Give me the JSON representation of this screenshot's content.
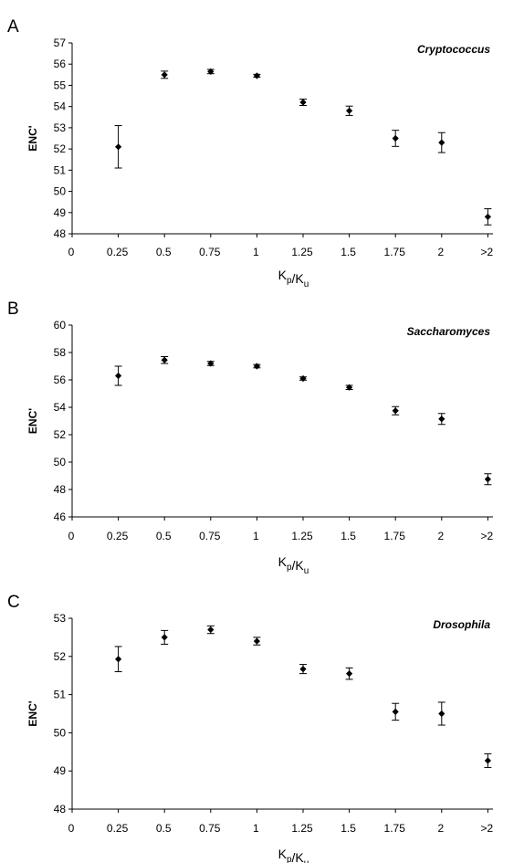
{
  "chart_data": [
    {
      "type": "scatter",
      "panel_label": "A",
      "title": "Cryptococcus",
      "xlabel": "K_p/K_u",
      "ylabel": "ENC'",
      "x_ticks": [
        "0",
        "0.25",
        "0.5",
        "0.75",
        "1",
        "1.25",
        "1.5",
        "1.75",
        "2",
        ">2"
      ],
      "y_ticks": [
        "48",
        "49",
        "50",
        "51",
        "52",
        "53",
        "54",
        "55",
        "56",
        "57"
      ],
      "ylim": [
        48,
        57
      ],
      "grid": false,
      "series": [
        {
          "points": [
            {
              "x": "0.25",
              "y": 52.1,
              "err": 1.0
            },
            {
              "x": "0.5",
              "y": 55.5,
              "err": 0.17
            },
            {
              "x": "0.75",
              "y": 55.65,
              "err": 0.1
            },
            {
              "x": "1",
              "y": 55.45,
              "err": 0.07
            },
            {
              "x": "1.25",
              "y": 54.2,
              "err": 0.15
            },
            {
              "x": "1.5",
              "y": 53.8,
              "err": 0.22
            },
            {
              "x": "1.75",
              "y": 52.5,
              "err": 0.38
            },
            {
              "x": "2",
              "y": 52.3,
              "err": 0.47
            },
            {
              "x": ">2",
              "y": 48.8,
              "err": 0.38
            }
          ]
        }
      ]
    },
    {
      "type": "scatter",
      "panel_label": "B",
      "title": "Saccharomyces",
      "xlabel": "K_p/K_u",
      "ylabel": "ENC'",
      "x_ticks": [
        "0",
        "0.25",
        "0.5",
        "0.75",
        "1",
        "1.25",
        "1.5",
        "1.75",
        "2",
        ">2"
      ],
      "y_ticks": [
        "46",
        "48",
        "50",
        "52",
        "54",
        "56",
        "58",
        "60"
      ],
      "ylim": [
        46,
        60
      ],
      "grid": false,
      "series": [
        {
          "points": [
            {
              "x": "0.25",
              "y": 56.3,
              "err": 0.7
            },
            {
              "x": "0.5",
              "y": 57.45,
              "err": 0.25
            },
            {
              "x": "0.75",
              "y": 57.2,
              "err": 0.15
            },
            {
              "x": "1",
              "y": 57.0,
              "err": 0.12
            },
            {
              "x": "1.25",
              "y": 56.1,
              "err": 0.12
            },
            {
              "x": "1.5",
              "y": 55.45,
              "err": 0.15
            },
            {
              "x": "1.75",
              "y": 53.75,
              "err": 0.3
            },
            {
              "x": "2",
              "y": 53.15,
              "err": 0.4
            },
            {
              "x": ">2",
              "y": 48.75,
              "err": 0.4
            }
          ]
        }
      ]
    },
    {
      "type": "scatter",
      "panel_label": "C",
      "title": "Drosophila",
      "xlabel": "K_p/K_u",
      "ylabel": "ENC'",
      "x_ticks": [
        "0",
        "0.25",
        "0.5",
        "0.75",
        "1",
        "1.25",
        "1.5",
        "1.75",
        "2",
        ">2"
      ],
      "y_ticks": [
        "48",
        "49",
        "50",
        "51",
        "52",
        "53"
      ],
      "ylim": [
        48,
        53
      ],
      "grid": false,
      "series": [
        {
          "points": [
            {
              "x": "0.25",
              "y": 51.93,
              "err": 0.33
            },
            {
              "x": "0.5",
              "y": 52.5,
              "err": 0.18
            },
            {
              "x": "0.75",
              "y": 52.7,
              "err": 0.1
            },
            {
              "x": "1",
              "y": 52.4,
              "err": 0.1
            },
            {
              "x": "1.25",
              "y": 51.67,
              "err": 0.12
            },
            {
              "x": "1.5",
              "y": 51.55,
              "err": 0.15
            },
            {
              "x": "1.75",
              "y": 50.55,
              "err": 0.22
            },
            {
              "x": "2",
              "y": 50.5,
              "err": 0.3
            },
            {
              "x": ">2",
              "y": 49.27,
              "err": 0.18
            }
          ]
        }
      ]
    }
  ]
}
